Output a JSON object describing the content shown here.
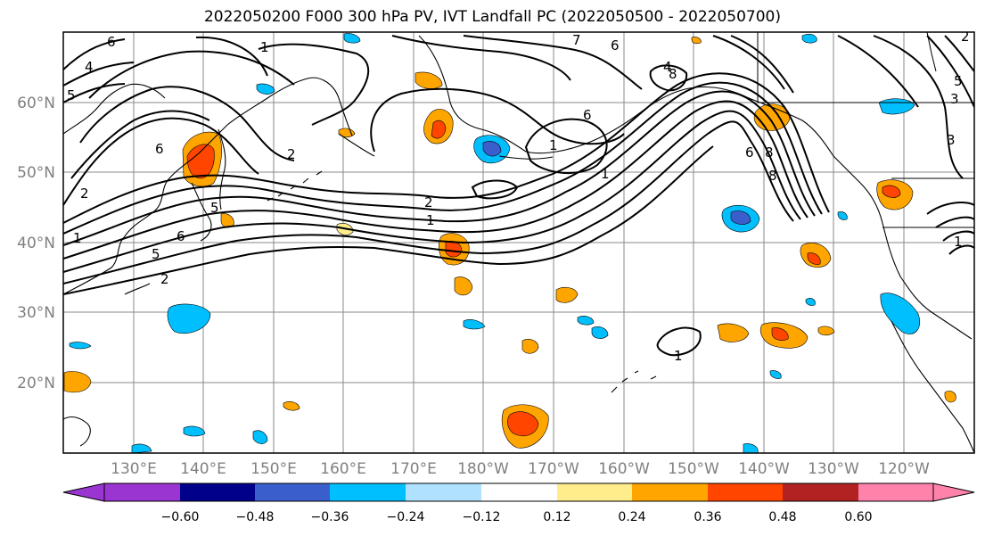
{
  "title": "2022050200 F000 300 hPa PV, IVT Landfall PC (2022050500 - 2022050700)",
  "lat_labels": [
    "60°N",
    "50°N",
    "40°N",
    "30°N",
    "20°N"
  ],
  "lon_labels": [
    "130°E",
    "140°E",
    "150°E",
    "160°E",
    "170°E",
    "180°W",
    "170°W",
    "160°W",
    "150°W",
    "140°W",
    "130°W",
    "120°W"
  ],
  "colorbar": {
    "ticks": [
      "−0.60",
      "−0.48",
      "−0.36",
      "−0.24",
      "−0.12",
      "0.12",
      "0.24",
      "0.36",
      "0.48",
      "0.60"
    ],
    "colors": [
      "#9a35d1",
      "#00008b",
      "#3a5fcd",
      "#00bfff",
      "#b0e2ff",
      "#ffffff",
      "#ffec8b",
      "#ffa500",
      "#ff4500",
      "#b22222",
      "#ff82ab"
    ]
  },
  "pv_contour_labels": [
    "6",
    "4",
    "5",
    "2",
    "1",
    "2",
    "5",
    "6",
    "5",
    "2",
    "1",
    "2",
    "6",
    "1",
    "6",
    "7",
    "6",
    "1",
    "4",
    "1",
    "3",
    "8",
    "6",
    "8",
    "8",
    "2",
    "5",
    "3",
    "1",
    "1"
  ],
  "colors": {
    "coast": "#000000",
    "grid": "#808080",
    "contour": "#000000"
  }
}
